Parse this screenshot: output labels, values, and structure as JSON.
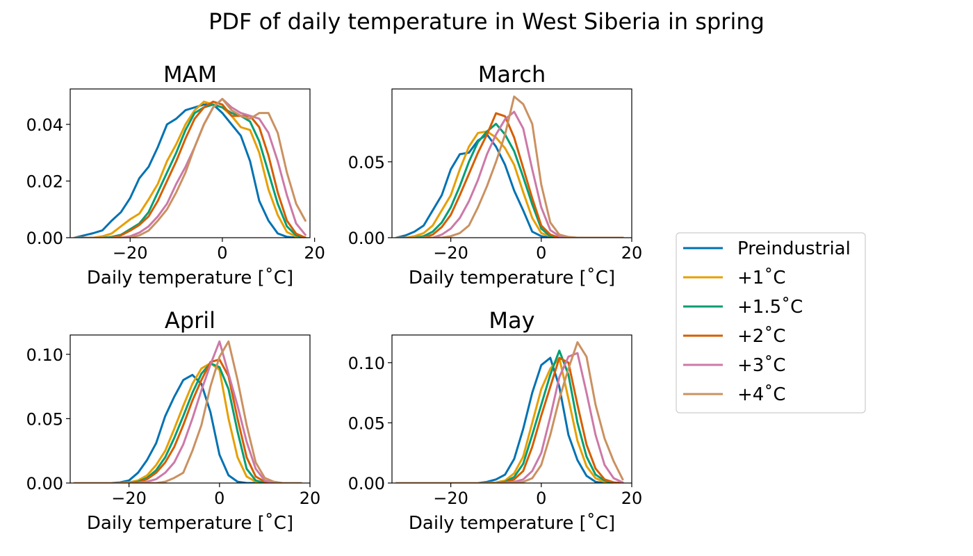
{
  "suptitle": "PDF of daily temperature in West Siberia in spring",
  "colors": {
    "Preindustrial": "#0072b2",
    "+1˚C": "#e69f00",
    "+1.5˚C": "#009e73",
    "+2˚C": "#d55e00",
    "+3˚C": "#cc79a7",
    "+4˚C": "#ca9161"
  },
  "chart_data": [
    {
      "type": "line",
      "title": "MAM",
      "xlabel": "Daily temperature [˚C]",
      "ylabel": "",
      "xlim": [
        -33,
        19
      ],
      "ylim": [
        0,
        0.0525
      ],
      "xticks": [
        -20,
        0,
        20
      ],
      "xtick_labels": [
        "−20",
        "0",
        "20"
      ],
      "yticks": [
        0,
        0.02,
        0.04
      ],
      "ytick_labels": [
        "0.00",
        "0.02",
        "0.04"
      ],
      "x": [
        -32,
        -30,
        -28,
        -26,
        -24,
        -22,
        -20,
        -18,
        -16,
        -14,
        -12,
        -10,
        -8,
        -6,
        -4,
        -2,
        0,
        2,
        4,
        6,
        8,
        10,
        12,
        14,
        16,
        18
      ],
      "series": [
        {
          "name": "Preindustrial",
          "values": [
            0,
            0.0008,
            0.0016,
            0.0026,
            0.006,
            0.009,
            0.014,
            0.021,
            0.025,
            0.032,
            0.04,
            0.042,
            0.045,
            0.046,
            0.047,
            0.047,
            0.044,
            0.04,
            0.036,
            0.027,
            0.013,
            0.006,
            0.0015,
            0.0003,
            0,
            0
          ]
        },
        {
          "name": "+1˚C",
          "values": [
            0,
            0,
            0,
            0.0005,
            0.0015,
            0.004,
            0.0065,
            0.0085,
            0.0135,
            0.019,
            0.027,
            0.033,
            0.04,
            0.045,
            0.048,
            0.047,
            0.046,
            0.043,
            0.039,
            0.038,
            0.03,
            0.017,
            0.008,
            0.002,
            0.0004,
            0
          ]
        },
        {
          "name": "+1.5˚C",
          "values": [
            0,
            0,
            0,
            0,
            0.0003,
            0.001,
            0.003,
            0.005,
            0.009,
            0.016,
            0.023,
            0.03,
            0.038,
            0.044,
            0.046,
            0.047,
            0.046,
            0.044,
            0.043,
            0.041,
            0.034,
            0.023,
            0.012,
            0.004,
            0.0008,
            0
          ]
        },
        {
          "name": "+2˚C",
          "values": [
            0,
            0,
            0,
            0,
            0,
            0.0008,
            0.0025,
            0.0045,
            0.0075,
            0.013,
            0.02,
            0.027,
            0.035,
            0.042,
            0.046,
            0.048,
            0.047,
            0.043,
            0.043,
            0.043,
            0.039,
            0.029,
            0.016,
            0.006,
            0.0014,
            0
          ]
        },
        {
          "name": "+3˚C",
          "values": [
            0,
            0,
            0,
            0,
            0,
            0,
            0.0005,
            0.0018,
            0.004,
            0.0075,
            0.012,
            0.019,
            0.025,
            0.032,
            0.04,
            0.046,
            0.049,
            0.046,
            0.044,
            0.043,
            0.042,
            0.037,
            0.027,
            0.015,
            0.005,
            0.001
          ]
        },
        {
          "name": "+4˚C",
          "values": [
            0,
            0,
            0,
            0,
            0,
            0,
            0,
            0.0008,
            0.0025,
            0.006,
            0.01,
            0.016,
            0.023,
            0.032,
            0.04,
            0.046,
            0.049,
            0.045,
            0.043,
            0.042,
            0.044,
            0.044,
            0.037,
            0.023,
            0.012,
            0.006
          ]
        }
      ]
    },
    {
      "type": "line",
      "title": "March",
      "xlabel": "Daily temperature [˚C]",
      "ylabel": "",
      "xlim": [
        -33,
        20
      ],
      "ylim": [
        0,
        0.098
      ],
      "xticks": [
        -20,
        0,
        20
      ],
      "xtick_labels": [
        "−20",
        "0",
        "20"
      ],
      "yticks": [
        0,
        0.05
      ],
      "ytick_labels": [
        "0.00",
        "0.05"
      ],
      "x": [
        -32,
        -30,
        -28,
        -26,
        -24,
        -22,
        -20,
        -18,
        -16,
        -14,
        -12,
        -10,
        -8,
        -6,
        -4,
        -2,
        0,
        2,
        4,
        6,
        8,
        10,
        12,
        14,
        16,
        18
      ],
      "series": [
        {
          "name": "Preindustrial",
          "values": [
            0,
            0.0015,
            0.004,
            0.008,
            0.018,
            0.028,
            0.045,
            0.055,
            0.056,
            0.064,
            0.068,
            0.06,
            0.048,
            0.031,
            0.018,
            0.004,
            0.001,
            0,
            0,
            0,
            0,
            0,
            0,
            0,
            0,
            0
          ]
        },
        {
          "name": "+1˚C",
          "values": [
            0,
            0,
            0.001,
            0.003,
            0.008,
            0.018,
            0.028,
            0.045,
            0.06,
            0.069,
            0.07,
            0.066,
            0.059,
            0.048,
            0.03,
            0.013,
            0.003,
            0.001,
            0,
            0,
            0,
            0,
            0,
            0,
            0,
            0
          ]
        },
        {
          "name": "+1.5˚C",
          "values": [
            0,
            0,
            0,
            0.001,
            0.004,
            0.01,
            0.02,
            0.034,
            0.05,
            0.063,
            0.07,
            0.075,
            0.068,
            0.057,
            0.04,
            0.022,
            0.006,
            0.001,
            0,
            0,
            0,
            0,
            0,
            0,
            0,
            0
          ]
        },
        {
          "name": "+2˚C",
          "values": [
            0,
            0,
            0,
            0,
            0.002,
            0.007,
            0.015,
            0.028,
            0.042,
            0.056,
            0.068,
            0.082,
            0.08,
            0.066,
            0.046,
            0.026,
            0.008,
            0.002,
            0,
            0,
            0,
            0,
            0,
            0,
            0,
            0
          ]
        },
        {
          "name": "+3˚C",
          "values": [
            0,
            0,
            0,
            0,
            0,
            0.002,
            0.006,
            0.013,
            0.024,
            0.038,
            0.055,
            0.068,
            0.078,
            0.083,
            0.072,
            0.045,
            0.02,
            0.005,
            0.001,
            0,
            0,
            0,
            0,
            0,
            0,
            0
          ]
        },
        {
          "name": "+4˚C",
          "values": [
            0,
            0,
            0,
            0,
            0,
            0,
            0.001,
            0.003,
            0.008,
            0.02,
            0.034,
            0.05,
            0.068,
            0.093,
            0.088,
            0.075,
            0.035,
            0.01,
            0.002,
            0.0005,
            0,
            0,
            0,
            0,
            0,
            0
          ]
        }
      ]
    },
    {
      "type": "line",
      "title": "April",
      "xlabel": "Daily temperature [˚C]",
      "ylabel": "",
      "xlim": [
        -33,
        20
      ],
      "ylim": [
        0,
        0.115
      ],
      "xticks": [
        -20,
        0,
        20
      ],
      "xtick_labels": [
        "−20",
        "0",
        "20"
      ],
      "yticks": [
        0,
        0.05,
        0.1
      ],
      "ytick_labels": [
        "0.00",
        "0.05",
        "0.10"
      ],
      "x": [
        -32,
        -30,
        -28,
        -26,
        -24,
        -22,
        -20,
        -18,
        -16,
        -14,
        -12,
        -10,
        -8,
        -6,
        -4,
        -2,
        0,
        2,
        4,
        6,
        8,
        10,
        12,
        14,
        16,
        18
      ],
      "series": [
        {
          "name": "Preindustrial",
          "values": [
            0,
            0,
            0,
            0,
            0,
            0.0005,
            0.002,
            0.008,
            0.018,
            0.031,
            0.052,
            0.067,
            0.08,
            0.084,
            0.077,
            0.055,
            0.022,
            0.006,
            0.001,
            0,
            0,
            0,
            0,
            0,
            0,
            0
          ]
        },
        {
          "name": "+1˚C",
          "values": [
            0,
            0,
            0,
            0,
            0,
            0,
            0.0005,
            0.002,
            0.006,
            0.014,
            0.025,
            0.042,
            0.06,
            0.077,
            0.089,
            0.093,
            0.088,
            0.05,
            0.02,
            0.005,
            0.001,
            0,
            0,
            0,
            0,
            0
          ]
        },
        {
          "name": "+1.5˚C",
          "values": [
            0,
            0,
            0,
            0,
            0,
            0,
            0,
            0.001,
            0.004,
            0.01,
            0.02,
            0.035,
            0.052,
            0.07,
            0.085,
            0.093,
            0.09,
            0.073,
            0.04,
            0.011,
            0.002,
            0,
            0,
            0,
            0,
            0
          ]
        },
        {
          "name": "+2˚C",
          "values": [
            0,
            0,
            0,
            0,
            0,
            0,
            0,
            0.0005,
            0.003,
            0.008,
            0.016,
            0.028,
            0.045,
            0.064,
            0.08,
            0.094,
            0.096,
            0.083,
            0.05,
            0.02,
            0.005,
            0.001,
            0,
            0,
            0,
            0
          ]
        },
        {
          "name": "+3˚C",
          "values": [
            0,
            0,
            0,
            0,
            0,
            0,
            0,
            0,
            0.001,
            0.003,
            0.008,
            0.016,
            0.03,
            0.05,
            0.072,
            0.092,
            0.11,
            0.085,
            0.06,
            0.032,
            0.011,
            0.002,
            0,
            0,
            0,
            0
          ]
        },
        {
          "name": "+4˚C",
          "values": [
            0,
            0,
            0,
            0,
            0,
            0,
            0,
            0,
            0,
            0,
            0.001,
            0.004,
            0.008,
            0.025,
            0.045,
            0.075,
            0.098,
            0.11,
            0.08,
            0.045,
            0.016,
            0.004,
            0.001,
            0,
            0,
            0
          ]
        }
      ]
    },
    {
      "type": "line",
      "title": "May",
      "xlabel": "Daily temperature [˚C]",
      "ylabel": "",
      "xlim": [
        -33,
        20
      ],
      "ylim": [
        0,
        0.123
      ],
      "xticks": [
        -20,
        0,
        20
      ],
      "xtick_labels": [
        "−20",
        "0",
        "20"
      ],
      "yticks": [
        0,
        0.05,
        0.1
      ],
      "ytick_labels": [
        "0.00",
        "0.05",
        "0.10"
      ],
      "x": [
        -32,
        -30,
        -28,
        -26,
        -24,
        -22,
        -20,
        -18,
        -16,
        -14,
        -12,
        -10,
        -8,
        -6,
        -4,
        -2,
        0,
        2,
        4,
        6,
        8,
        10,
        12,
        14,
        16,
        18
      ],
      "series": [
        {
          "name": "Preindustrial",
          "values": [
            0,
            0,
            0,
            0,
            0,
            0,
            0,
            0,
            0,
            0,
            0.001,
            0.003,
            0.007,
            0.02,
            0.045,
            0.075,
            0.098,
            0.104,
            0.08,
            0.04,
            0.019,
            0.006,
            0.001,
            0,
            0,
            0
          ]
        },
        {
          "name": "+1˚C",
          "values": [
            0,
            0,
            0,
            0,
            0,
            0,
            0,
            0,
            0,
            0,
            0,
            0.0005,
            0.002,
            0.008,
            0.022,
            0.05,
            0.078,
            0.095,
            0.104,
            0.07,
            0.035,
            0.014,
            0.004,
            0.001,
            0,
            0
          ]
        },
        {
          "name": "+1.5˚C",
          "values": [
            0,
            0,
            0,
            0,
            0,
            0,
            0,
            0,
            0,
            0,
            0,
            0,
            0.001,
            0.005,
            0.016,
            0.04,
            0.065,
            0.09,
            0.11,
            0.09,
            0.05,
            0.022,
            0.007,
            0.002,
            0,
            0
          ]
        },
        {
          "name": "+2˚C",
          "values": [
            0,
            0,
            0,
            0,
            0,
            0,
            0,
            0,
            0,
            0,
            0,
            0,
            0.0005,
            0.003,
            0.01,
            0.03,
            0.056,
            0.08,
            0.104,
            0.1,
            0.065,
            0.032,
            0.012,
            0.003,
            0.0005,
            0
          ]
        },
        {
          "name": "+3˚C",
          "values": [
            0,
            0,
            0,
            0,
            0,
            0,
            0,
            0,
            0,
            0,
            0,
            0,
            0,
            0.001,
            0.003,
            0.01,
            0.025,
            0.055,
            0.088,
            0.105,
            0.108,
            0.075,
            0.04,
            0.015,
            0.004,
            0.0005
          ]
        },
        {
          "name": "+4˚C",
          "values": [
            0,
            0,
            0,
            0,
            0,
            0,
            0,
            0,
            0,
            0,
            0,
            0,
            0,
            0,
            0.001,
            0.004,
            0.015,
            0.04,
            0.07,
            0.095,
            0.117,
            0.105,
            0.065,
            0.037,
            0.018,
            0.003
          ]
        }
      ]
    }
  ],
  "legend": {
    "placement": "right",
    "entries": [
      "Preindustrial",
      "+1˚C",
      "+1.5˚C",
      "+2˚C",
      "+3˚C",
      "+4˚C"
    ]
  }
}
